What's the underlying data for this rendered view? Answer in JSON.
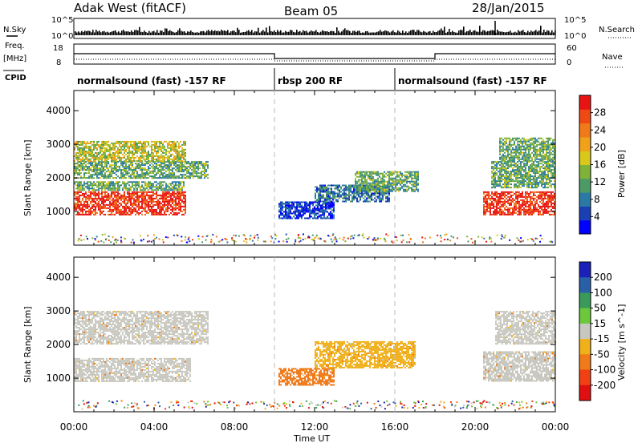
{
  "header": {
    "title": "Adak West (fitACF)",
    "beam": "Beam 05",
    "date": "28/Jan/2015"
  },
  "panels": {
    "nsky_label": "N.Sky",
    "nsearch_label": "N.Search",
    "freq_label": "Freq.",
    "freq_unit": "[MHz]",
    "nave_label": "Nave",
    "cpid_label": "CPID",
    "left_ticks_top": [
      "10^5",
      "10^0"
    ],
    "right_ticks_top": [
      "10^5",
      "10^0"
    ],
    "left_ticks_freq": [
      "18",
      "8"
    ],
    "right_ticks_freq": [
      "60",
      "0"
    ]
  },
  "cpid_modes": [
    {
      "label": "normalsound (fast) -157 RF",
      "start": 0,
      "end": 10
    },
    {
      "label": "rbsp 200 RF",
      "start": 10,
      "end": 16
    },
    {
      "label": "normalsound (fast) -157 RF",
      "start": 16,
      "end": 24
    }
  ],
  "chart_data": [
    {
      "type": "heatmap",
      "name": "power",
      "xlabel": "",
      "ylabel": "Slant Range [km]",
      "xlim": [
        0,
        24
      ],
      "ylim": [
        0,
        4600
      ],
      "y_ticks": [
        "1000",
        "2000",
        "3000",
        "4000"
      ],
      "colorbar": {
        "label": "Power [dB]",
        "ticks": [
          "4",
          "8",
          "12",
          "16",
          "20",
          "24",
          "28"
        ],
        "colors": [
          "#0000ff",
          "#1a40b4",
          "#2b7aa6",
          "#4c9a66",
          "#7fb23a",
          "#d8c81c",
          "#f0a01a",
          "#f07a1a",
          "#f04a14",
          "#e81414"
        ]
      },
      "echo_regions": [
        {
          "x0": 0.0,
          "x1": 5.6,
          "y0": 900,
          "y1": 1600,
          "level": 28
        },
        {
          "x0": 0.0,
          "x1": 5.5,
          "y0": 1650,
          "y1": 1900,
          "level": 12
        },
        {
          "x0": 0.0,
          "x1": 6.7,
          "y0": 2000,
          "y1": 2500,
          "level": 12
        },
        {
          "x0": 0.0,
          "x1": 5.6,
          "y0": 2500,
          "y1": 3100,
          "level": 16
        },
        {
          "x0": 10.2,
          "x1": 13.0,
          "y0": 800,
          "y1": 1300,
          "level": 4
        },
        {
          "x0": 12.0,
          "x1": 15.7,
          "y0": 1300,
          "y1": 1800,
          "level": 8
        },
        {
          "x0": 14.0,
          "x1": 17.2,
          "y0": 1600,
          "y1": 2200,
          "level": 12
        },
        {
          "x0": 20.4,
          "x1": 24.0,
          "y0": 900,
          "y1": 1600,
          "level": 28
        },
        {
          "x0": 20.8,
          "x1": 24.0,
          "y0": 1700,
          "y1": 2500,
          "level": 12
        },
        {
          "x0": 21.2,
          "x1": 24.0,
          "y0": 2500,
          "y1": 3200,
          "level": 12
        }
      ]
    },
    {
      "type": "heatmap",
      "name": "velocity",
      "xlabel": "Time UT",
      "ylabel": "Slant Range [km]",
      "xlim": [
        0,
        24
      ],
      "ylim": [
        0,
        4600
      ],
      "x_ticks": [
        "00:00",
        "04:00",
        "08:00",
        "12:00",
        "16:00",
        "20:00",
        "00:00"
      ],
      "y_ticks": [
        "1000",
        "2000",
        "3000",
        "4000"
      ],
      "colorbar": {
        "label": "Velocity [m s^-1]",
        "ticks": [
          "200",
          "100",
          "50",
          "15",
          "-15",
          "-50",
          "-100",
          "-200"
        ],
        "colors": [
          "#1a20b8",
          "#2a60a8",
          "#3a9a5a",
          "#6ac83a",
          "#c8c8c0",
          "#f0b01a",
          "#f07a1a",
          "#f04014",
          "#e01010"
        ]
      },
      "echo_regions": [
        {
          "x0": 0.0,
          "x1": 5.8,
          "y0": 900,
          "y1": 1600,
          "level": 0
        },
        {
          "x0": 0.0,
          "x1": 6.7,
          "y0": 2000,
          "y1": 3000,
          "level": 0
        },
        {
          "x0": 10.2,
          "x1": 13.0,
          "y0": 800,
          "y1": 1300,
          "level": -100
        },
        {
          "x0": 12.0,
          "x1": 17.0,
          "y0": 1300,
          "y1": 2100,
          "level": -50
        },
        {
          "x0": 20.4,
          "x1": 24.0,
          "y0": 900,
          "y1": 1800,
          "level": 0
        },
        {
          "x0": 21.0,
          "x1": 24.0,
          "y0": 2000,
          "y1": 3000,
          "level": 0
        }
      ]
    }
  ]
}
